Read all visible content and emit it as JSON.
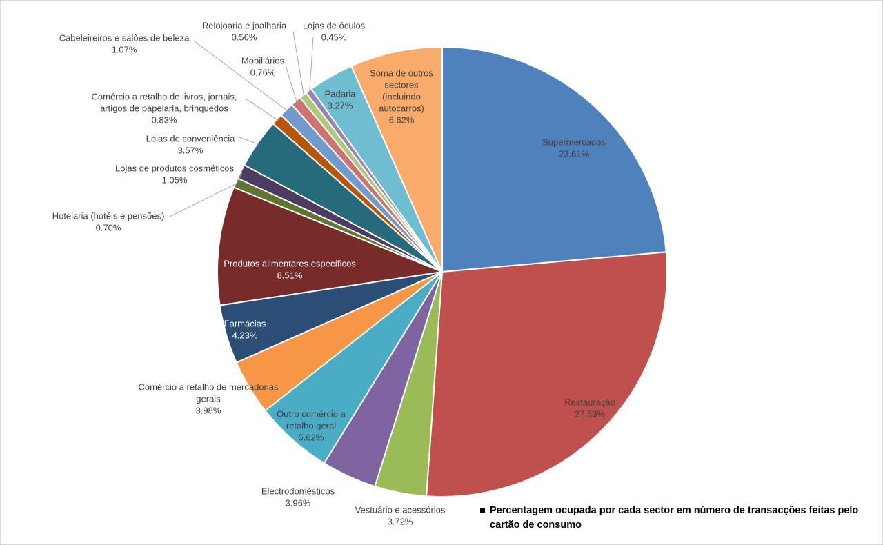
{
  "chart_data": {
    "type": "pie",
    "title": "",
    "legend": "Percentagem ocupada por cada sector em número de transacções feitas pelo cartão de consumo",
    "legend_placement": "bottom-right",
    "start_angle_deg": 0,
    "direction": "clockwise",
    "slices": [
      {
        "label": "Supermercados",
        "value": 23.61,
        "display": "23.61%",
        "color": "#4F81BD"
      },
      {
        "label": "Restauração",
        "value": 27.53,
        "display": "27.53%",
        "color": "#C0504D"
      },
      {
        "label": "Vestuário e acessórios",
        "value": 3.72,
        "display": "3.72%",
        "color": "#9BBB59"
      },
      {
        "label": "Electrodomésticos",
        "value": 3.96,
        "display": "3.96%",
        "color": "#8064A2"
      },
      {
        "label": "Outro comércio a retalho geral",
        "value": 5.62,
        "display": "5.62%",
        "color": "#4BACC6"
      },
      {
        "label": "Comércio a retalho de mercadorias gerais",
        "value": 3.98,
        "display": "3.98%",
        "color": "#F79646"
      },
      {
        "label": "Farmácias",
        "value": 4.23,
        "display": "4.23%",
        "color": "#2C4D75"
      },
      {
        "label": "Produtos alimentares específicos",
        "value": 8.51,
        "display": "8.51%",
        "color": "#772C2A"
      },
      {
        "label": "Hotelaria (hotéis e pensões)",
        "value": 0.7,
        "display": "0.70%",
        "color": "#5F7530"
      },
      {
        "label": "Lojas de produtos cosméticos",
        "value": 1.05,
        "display": "1.05%",
        "color": "#4D3B62"
      },
      {
        "label": "Lojas de conveniência",
        "value": 3.57,
        "display": "3.57%",
        "color": "#276A7C"
      },
      {
        "label": "Comércio a retalho de livros, jornais, artigos de papelaria, brinquedos",
        "value": 0.83,
        "display": "0.83%",
        "color": "#B65708"
      },
      {
        "label": "Cabeleireiros e salões de beleza",
        "value": 1.07,
        "display": "1.07%",
        "color": "#729ACA"
      },
      {
        "label": "Mobiliários",
        "value": 0.76,
        "display": "0.76%",
        "color": "#CD7371"
      },
      {
        "label": "Relojoaria e joalharia",
        "value": 0.56,
        "display": "0.56%",
        "color": "#AFC97A"
      },
      {
        "label": "Lojas de óculos",
        "value": 0.45,
        "display": "0.45%",
        "color": "#9983B5"
      },
      {
        "label": "Padaria",
        "value": 3.27,
        "display": "3.27%",
        "color": "#6FBDD1"
      },
      {
        "label": "Soma de outros sectores (incluindo autocarros)",
        "value": 6.62,
        "display": "6.62%",
        "color": "#F9AB6B"
      }
    ]
  }
}
